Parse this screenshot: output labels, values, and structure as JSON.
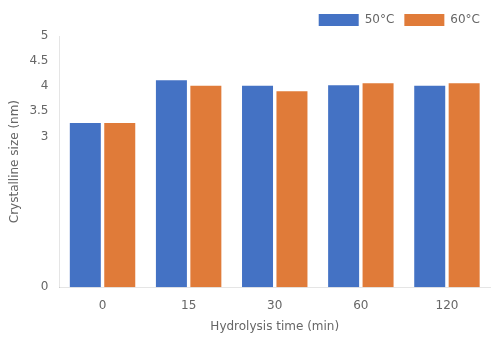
{
  "chart_data": {
    "type": "bar",
    "categories": [
      "0",
      "15",
      "30",
      "60",
      "120"
    ],
    "series": [
      {
        "name": "50°C",
        "color": "#4472C4",
        "values": [
          3.27,
          4.12,
          4.01,
          4.02,
          4.01
        ]
      },
      {
        "name": "60°C",
        "color": "#E07B39",
        "values": [
          3.27,
          4.01,
          3.9,
          4.06,
          4.06
        ]
      }
    ],
    "xlabel": "Hydrolysis time (min)",
    "ylabel": "Crystalline size (nm)",
    "ylim": [
      0,
      5.0
    ],
    "yticks": [
      0,
      3.0,
      3.5,
      4.0,
      4.5,
      5.0
    ],
    "grid": false,
    "legend": "upper right"
  }
}
